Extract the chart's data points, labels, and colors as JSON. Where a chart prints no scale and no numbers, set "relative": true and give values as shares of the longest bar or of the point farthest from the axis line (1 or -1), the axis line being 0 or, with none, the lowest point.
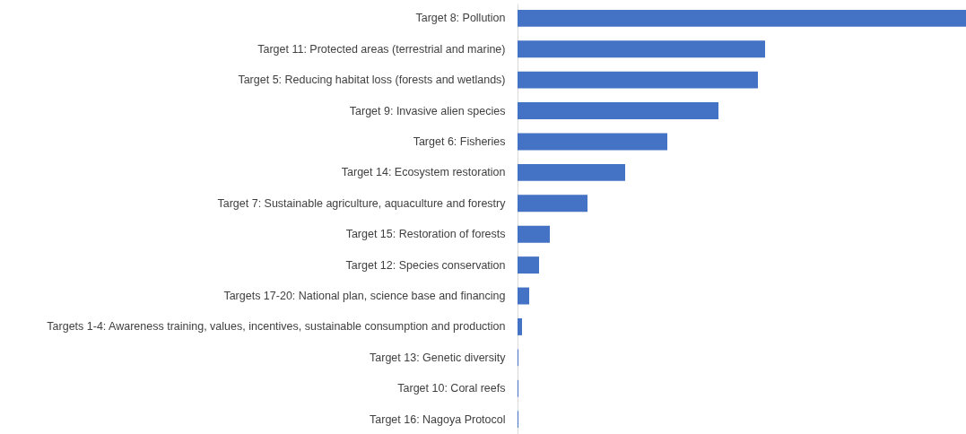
{
  "chart_data": {
    "type": "bar",
    "orientation": "horizontal",
    "relative": true,
    "color": "#4472c4",
    "categories": [
      "Target 8: Pollution",
      "Target 11: Protected areas (terrestrial and marine)",
      "Target 5: Reducing habitat loss (forests and wetlands)",
      "Target 9: Invasive alien species",
      "Target 6: Fisheries",
      "Target 14: Ecosystem restoration",
      "Target 7: Sustainable agriculture, aquaculture and forestry",
      "Target 15: Restoration of forests",
      "Target 12: Species conservation",
      "Targets 17-20: National plan, science base and financing",
      "Targets 1-4: Awareness training, values, incentives, sustainable consumption and production",
      "Target 13: Genetic diversity",
      "Target 10: Coral reefs",
      "Target 16: Nagoya Protocol"
    ],
    "values": [
      1,
      0.552,
      0.536,
      0.448,
      0.334,
      0.24,
      0.156,
      0.072,
      0.048,
      0.026,
      0.01,
      0.002,
      0.002,
      0.002
    ]
  }
}
